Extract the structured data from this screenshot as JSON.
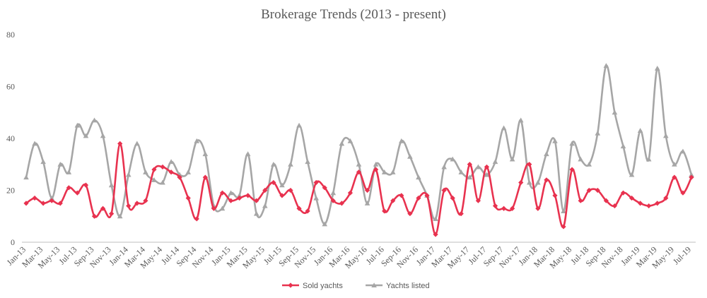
{
  "chart_data": {
    "type": "line",
    "title": "Brokerage Trends (2013 - present)",
    "xlabel": "",
    "ylabel": "",
    "ylim": [
      0,
      80
    ],
    "yticks": [
      0,
      20,
      40,
      60,
      80
    ],
    "grid": false,
    "legend_position": "bottom",
    "x": [
      "Jan-13",
      "Feb-13",
      "Mar-13",
      "Apr-13",
      "May-13",
      "Jun-13",
      "Jul-13",
      "Aug-13",
      "Sep-13",
      "Oct-13",
      "Nov-13",
      "Dec-13",
      "Jan-14",
      "Feb-14",
      "Mar-14",
      "Apr-14",
      "May-14",
      "Jun-14",
      "Jul-14",
      "Aug-14",
      "Sep-14",
      "Oct-14",
      "Nov-14",
      "Dec-14",
      "Jan-15",
      "Feb-15",
      "Mar-15",
      "Apr-15",
      "May-15",
      "Jun-15",
      "Jul-15",
      "Aug-15",
      "Sep-15",
      "Oct-15",
      "Nov-15",
      "Dec-15",
      "Jan-16",
      "Feb-16",
      "Mar-16",
      "Apr-16",
      "May-16",
      "Jun-16",
      "Jul-16",
      "Aug-16",
      "Sep-16",
      "Oct-16",
      "Nov-16",
      "Dec-16",
      "Jan-17",
      "Feb-17",
      "Mar-17",
      "Apr-17",
      "May-17",
      "Jun-17",
      "Jul-17",
      "Aug-17",
      "Sep-17",
      "Oct-17",
      "Nov-17",
      "Dec-17",
      "Jan-18",
      "Feb-18",
      "Mar-18",
      "Apr-18",
      "May-18",
      "Jun-18",
      "Jul-18",
      "Aug-18",
      "Sep-18",
      "Oct-18",
      "Nov-18",
      "Dec-18",
      "Jan-19",
      "Feb-19",
      "Mar-19",
      "Apr-19",
      "May-19",
      "Jun-19",
      "Jul-19"
    ],
    "tick_labels": [
      "Jan-13",
      "Mar-13",
      "May-13",
      "Jul-13",
      "Sep-13",
      "Nov-13",
      "Jan-14",
      "Mar-14",
      "May-14",
      "Jul-14",
      "Sep-14",
      "Nov-14",
      "Jan-15",
      "Mar-15",
      "May-15",
      "Jul-15",
      "Sep-15",
      "Nov-15",
      "Jan-16",
      "Mar-16",
      "May-16",
      "Jul-16",
      "Sep-16",
      "Nov-16",
      "Jan-17",
      "Mar-17",
      "May-17",
      "Jul-17",
      "Sep-17",
      "Nov-17",
      "Jan-18",
      "Mar-18",
      "May-18",
      "Jul-18",
      "Sep-18",
      "Nov-18",
      "Jan-19",
      "Mar-19",
      "May-19",
      "Jul-19"
    ],
    "series": [
      {
        "name": "Sold yachts",
        "color": "#e8324f",
        "marker": "diamond",
        "values": [
          15,
          17,
          15,
          16,
          15,
          21,
          19,
          22,
          10,
          13,
          11,
          38,
          14,
          15,
          16,
          28,
          29,
          27,
          25,
          17,
          9,
          25,
          13,
          19,
          16,
          17,
          18,
          16,
          20,
          23,
          18,
          20,
          13,
          12,
          23,
          21,
          16,
          15,
          19,
          27,
          20,
          28,
          12,
          16,
          18,
          11,
          17,
          18,
          3,
          20,
          17,
          11,
          30,
          16,
          29,
          14,
          13,
          13,
          23,
          30,
          13,
          24,
          18,
          6,
          28,
          16,
          20,
          20,
          16,
          14,
          19,
          17,
          15,
          14,
          15,
          17,
          25,
          19,
          25
        ]
      },
      {
        "name": "Yachts listed",
        "color": "#a6a6a6",
        "marker": "triangle",
        "values": [
          25,
          38,
          31,
          17,
          30,
          27,
          45,
          41,
          47,
          41,
          22,
          10,
          26,
          38,
          27,
          24,
          23,
          31,
          26,
          27,
          39,
          34,
          14,
          13,
          19,
          18,
          34,
          11,
          14,
          30,
          22,
          30,
          45,
          31,
          17,
          7,
          19,
          38,
          39,
          30,
          15,
          30,
          27,
          27,
          39,
          33,
          25,
          18,
          9,
          29,
          32,
          27,
          25,
          29,
          26,
          31,
          44,
          32,
          47,
          23,
          23,
          34,
          39,
          12,
          38,
          32,
          30,
          42,
          68,
          50,
          37,
          26,
          43,
          32,
          67,
          41,
          30,
          35,
          26
        ]
      }
    ]
  }
}
